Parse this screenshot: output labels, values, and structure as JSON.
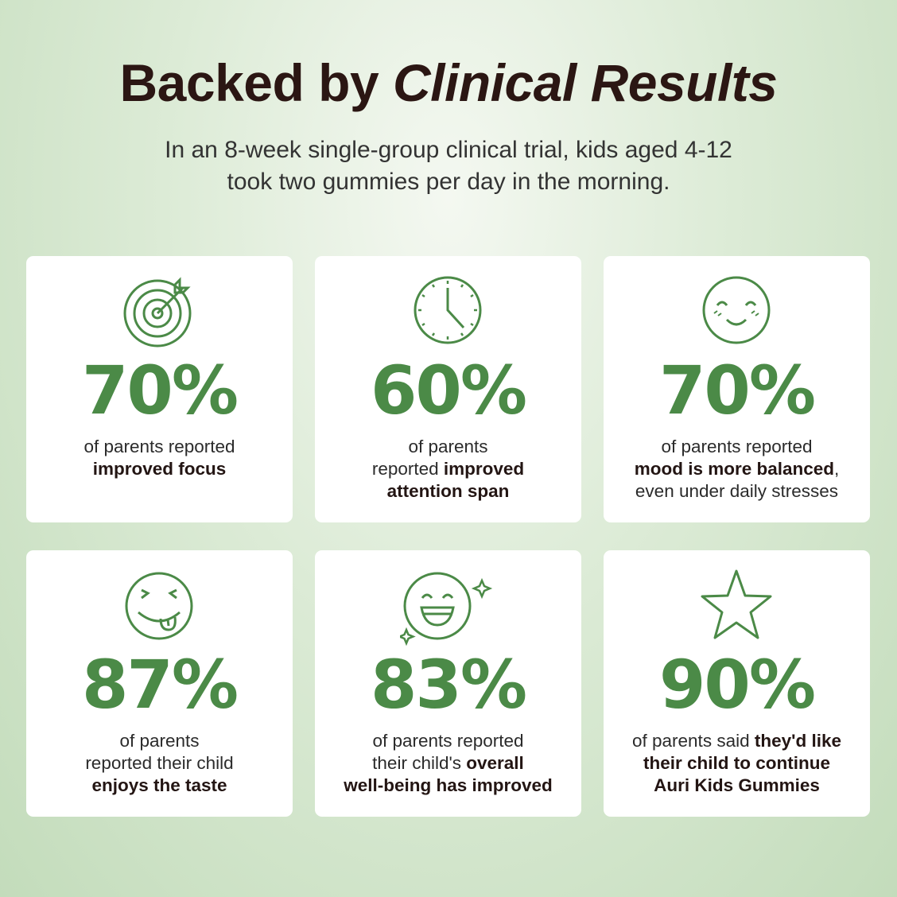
{
  "header": {
    "title_plain": "Backed by ",
    "title_italic": "Clinical Results",
    "subtitle_lines": [
      "In an 8-week single-group clinical trial, kids aged 4-12",
      "took two gummies per day in the morning."
    ]
  },
  "cards": [
    {
      "stat": "70%",
      "lines": [
        [
          {
            "text": "of parents reported",
            "bold": false
          }
        ],
        [
          {
            "text": "improved focus",
            "bold": true
          }
        ]
      ]
    },
    {
      "stat": "60%",
      "lines": [
        [
          {
            "text": "of parents",
            "bold": false
          }
        ],
        [
          {
            "text": "reported ",
            "bold": false
          },
          {
            "text": "improved",
            "bold": true
          }
        ],
        [
          {
            "text": "attention span",
            "bold": true
          }
        ]
      ]
    },
    {
      "stat": "70%",
      "lines": [
        [
          {
            "text": "of parents reported",
            "bold": false
          }
        ],
        [
          {
            "text": "mood is more balanced",
            "bold": true
          },
          {
            "text": ",",
            "bold": false
          }
        ],
        [
          {
            "text": "even under daily stresses",
            "bold": false
          }
        ]
      ]
    },
    {
      "stat": "87%",
      "lines": [
        [
          {
            "text": "of parents",
            "bold": false
          }
        ],
        [
          {
            "text": "reported their child",
            "bold": false
          }
        ],
        [
          {
            "text": "enjoys the taste",
            "bold": true
          }
        ]
      ]
    },
    {
      "stat": "83%",
      "lines": [
        [
          {
            "text": "of parents reported",
            "bold": false
          }
        ],
        [
          {
            "text": "their child's ",
            "bold": false
          },
          {
            "text": "overall",
            "bold": true
          }
        ],
        [
          {
            "text": "well-being has improved",
            "bold": true
          }
        ]
      ]
    },
    {
      "stat": "90%",
      "lines": [
        [
          {
            "text": "of parents said ",
            "bold": false
          },
          {
            "text": "they'd like",
            "bold": true
          }
        ],
        [
          {
            "text": "their child to continue",
            "bold": true
          }
        ],
        [
          {
            "text": "Auri Kids Gummies",
            "bold": true
          }
        ]
      ]
    }
  ]
}
